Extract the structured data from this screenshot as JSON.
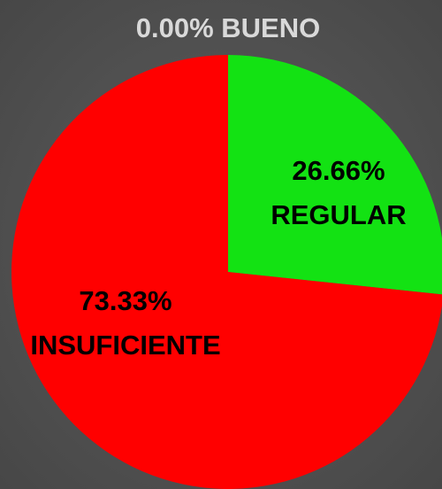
{
  "chart_data": {
    "type": "pie",
    "categories": [
      "BUENO",
      "REGULAR",
      "INSUFICIENTE"
    ],
    "values": [
      0,
      26.66,
      73.33
    ],
    "value_labels": [
      "0.00%",
      "26.66%",
      "73.33%"
    ],
    "colors": [
      null,
      "#13e213",
      "#ff0000"
    ]
  }
}
